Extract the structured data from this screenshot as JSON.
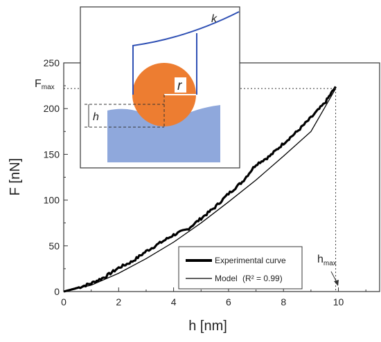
{
  "chart_data": {
    "type": "line",
    "xlabel": "h [nm]",
    "ylabel": "F [nN]",
    "xlim": [
      0,
      11.5
    ],
    "ylim": [
      0,
      250
    ],
    "xticks": [
      0,
      2,
      4,
      6,
      8,
      10
    ],
    "yticks": [
      0,
      50,
      100,
      150,
      200,
      250
    ],
    "grid": false,
    "legend_position": "lower-right",
    "series": [
      {
        "name": "Experimental curve",
        "style": "thick-noisy",
        "color": "#000000",
        "x": [
          0,
          0.5,
          1.0,
          1.5,
          2.0,
          2.5,
          3.0,
          3.5,
          4.0,
          4.5,
          5.0,
          5.5,
          6.0,
          6.5,
          7.0,
          7.5,
          8.0,
          8.5,
          9.0,
          9.5,
          9.9
        ],
        "y": [
          0,
          4,
          9,
          16,
          26,
          33,
          44,
          53,
          62,
          68,
          80,
          92,
          107,
          120,
          139,
          148,
          162,
          175,
          190,
          206,
          224
        ]
      },
      {
        "name": "Model",
        "r2_label": "(R² = 0.99)",
        "style": "thin",
        "color": "#000000",
        "x": [
          0,
          1,
          2,
          3,
          4,
          5,
          6,
          7,
          8,
          9,
          9.9
        ],
        "y": [
          0,
          7,
          20,
          36,
          54,
          75,
          98,
          122,
          148,
          175,
          222
        ]
      }
    ],
    "annotations": {
      "fmax_label": "F",
      "fmax_sub": "max",
      "hmax_label": "h",
      "hmax_sub": "max",
      "fmax_value": 222,
      "hmax_value": 9.9
    },
    "inset": {
      "spring_label": "k",
      "radius_label": "r",
      "depth_label": "h",
      "sphere_color": "#ed7d31",
      "substrate_color": "#8fa8dc",
      "cantilever_color": "#2f50b4"
    }
  }
}
